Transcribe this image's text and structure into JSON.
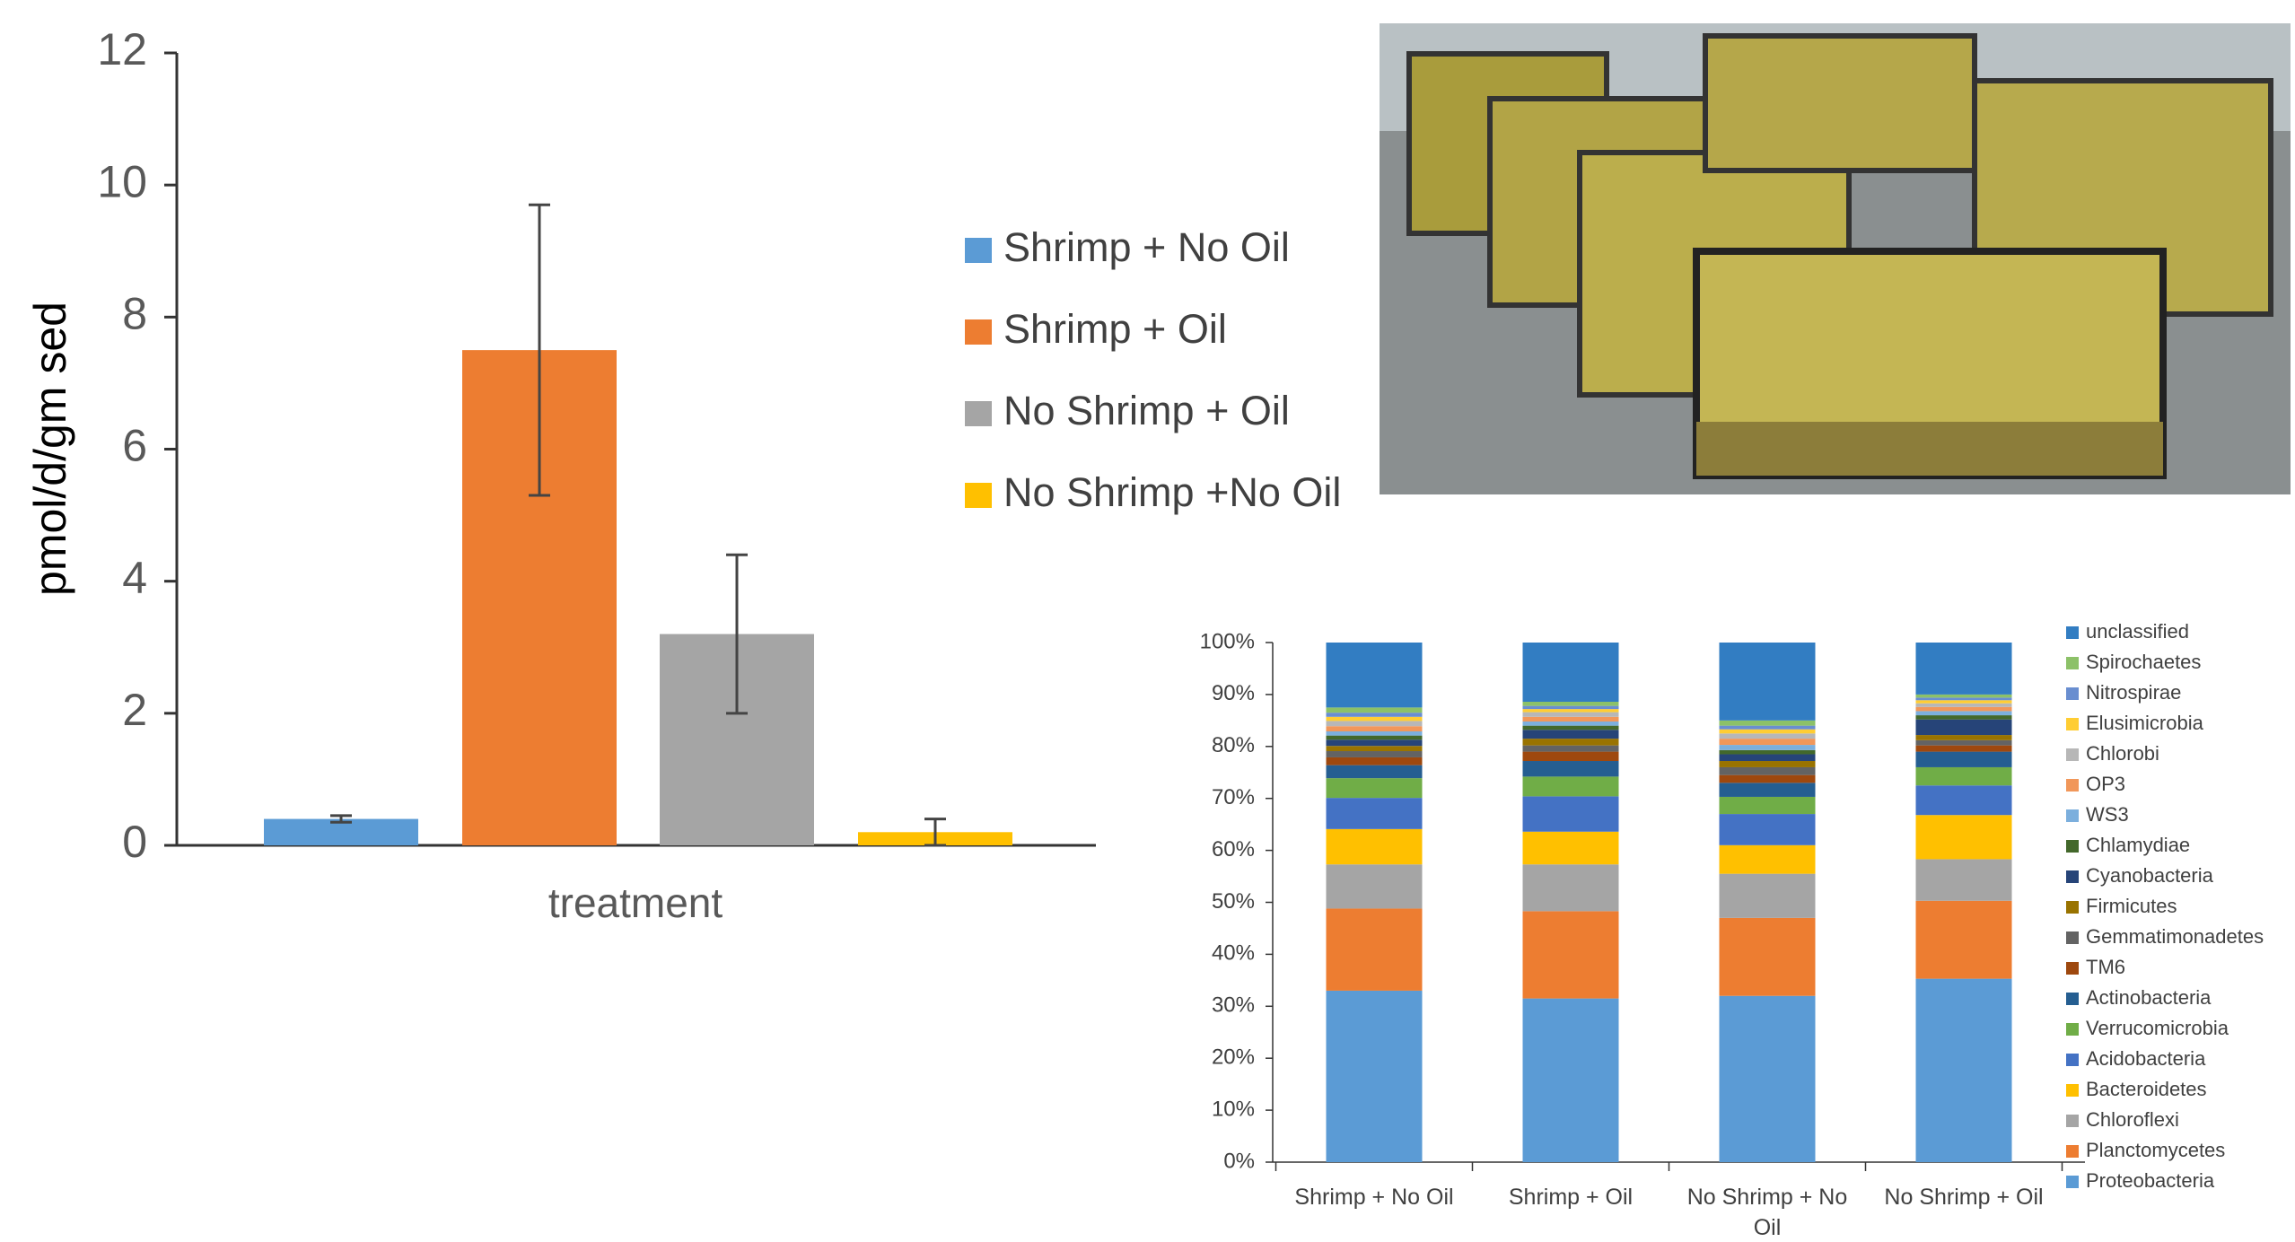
{
  "chart_data": [
    {
      "type": "bar",
      "stacked": false,
      "y_label": "pmol/d/gm sed",
      "x_label": "treatment",
      "categories": [
        "treatment"
      ],
      "ylim": [
        0,
        12
      ],
      "yticks": [
        0,
        2,
        4,
        6,
        8,
        10,
        12
      ],
      "grid": false,
      "legend": "right",
      "series": [
        {
          "name": "Shrimp + No Oil",
          "color": "#5b9bd5",
          "values": [
            0.4
          ],
          "errors": [
            0.05
          ]
        },
        {
          "name": "Shrimp + Oil",
          "color": "#ed7d31",
          "values": [
            7.5
          ],
          "errors": [
            2.2
          ]
        },
        {
          "name": "No Shrimp + Oil",
          "color": "#a5a5a5",
          "values": [
            3.2
          ],
          "errors": [
            1.2
          ]
        },
        {
          "name": "No Shrimp +No Oil",
          "color": "#ffc000",
          "values": [
            0.2
          ],
          "errors": [
            0.2
          ]
        }
      ]
    },
    {
      "type": "bar",
      "stacked": true,
      "categories": [
        "Shrimp + No Oil",
        "Shrimp + Oil",
        "No Shrimp + No Oil",
        "No Shrimp + Oil"
      ],
      "ylim": [
        0,
        100
      ],
      "grid": false,
      "legend": "right",
      "yticks": [
        {
          "value": 0,
          "label": "0%"
        },
        {
          "value": 10,
          "label": "10%"
        },
        {
          "value": 20,
          "label": "20%"
        },
        {
          "value": 30,
          "label": "30%"
        },
        {
          "value": 40,
          "label": "40%"
        },
        {
          "value": 50,
          "label": "50%"
        },
        {
          "value": 60,
          "label": "60%"
        },
        {
          "value": 70,
          "label": "70%"
        },
        {
          "value": 80,
          "label": "80%"
        },
        {
          "value": 90,
          "label": "90%"
        },
        {
          "value": 100,
          "label": "100%"
        }
      ],
      "series": [
        {
          "name": "Proteobacteria",
          "color": "#5b9bd5",
          "values": [
            33,
            31.5,
            32,
            35.3
          ]
        },
        {
          "name": "Planctomycetes",
          "color": "#ed7d31",
          "values": [
            15.8,
            16.8,
            15,
            15
          ]
        },
        {
          "name": "Chloroflexi",
          "color": "#a5a5a5",
          "values": [
            8.5,
            9,
            8.5,
            8
          ]
        },
        {
          "name": "Bacteroidetes",
          "color": "#ffc000",
          "values": [
            6.8,
            6.3,
            5.5,
            8.5
          ]
        },
        {
          "name": "Acidobacteria",
          "color": "#4472c4",
          "values": [
            6,
            6.8,
            6,
            5.7
          ]
        },
        {
          "name": "Verrucomicrobia",
          "color": "#70ad47",
          "values": [
            3.8,
            3.8,
            3.3,
            3.5
          ]
        },
        {
          "name": "Actinobacteria",
          "color": "#255e91",
          "values": [
            2.5,
            3,
            2.7,
            3
          ]
        },
        {
          "name": "TM6",
          "color": "#9e480e",
          "values": [
            1.5,
            1.8,
            1.5,
            1.2
          ]
        },
        {
          "name": "Gemmatimonadetes",
          "color": "#636363",
          "values": [
            1.2,
            1.2,
            1.5,
            1
          ]
        },
        {
          "name": "Firmicutes",
          "color": "#997300",
          "values": [
            1,
            1.3,
            1.2,
            1
          ]
        },
        {
          "name": "Cyanobacteria",
          "color": "#264478",
          "values": [
            1.2,
            1.7,
            1.3,
            3
          ]
        },
        {
          "name": "Chlamydiae",
          "color": "#43682b",
          "values": [
            0.8,
            0.8,
            0.8,
            0.8
          ]
        },
        {
          "name": "WS3",
          "color": "#7cafdd",
          "values": [
            0.8,
            0.8,
            1,
            0.8
          ]
        },
        {
          "name": "OP3",
          "color": "#f1975a",
          "values": [
            1,
            0.9,
            1.2,
            0.8
          ]
        },
        {
          "name": "Chlorobi",
          "color": "#b7b7b7",
          "values": [
            1,
            0.9,
            1,
            0.7
          ]
        },
        {
          "name": "Elusimicrobia",
          "color": "#ffcd33",
          "values": [
            0.8,
            0.6,
            0.8,
            0.6
          ]
        },
        {
          "name": "Nitrospirae",
          "color": "#698ed0",
          "values": [
            0.8,
            0.6,
            0.7,
            0.5
          ]
        },
        {
          "name": "Spirochaetes",
          "color": "#8cc168",
          "values": [
            1,
            0.8,
            1,
            0.6
          ]
        },
        {
          "name": "unclassified",
          "color": "#327dc2",
          "values": [
            12.5,
            11.4,
            15,
            10
          ]
        }
      ]
    }
  ]
}
